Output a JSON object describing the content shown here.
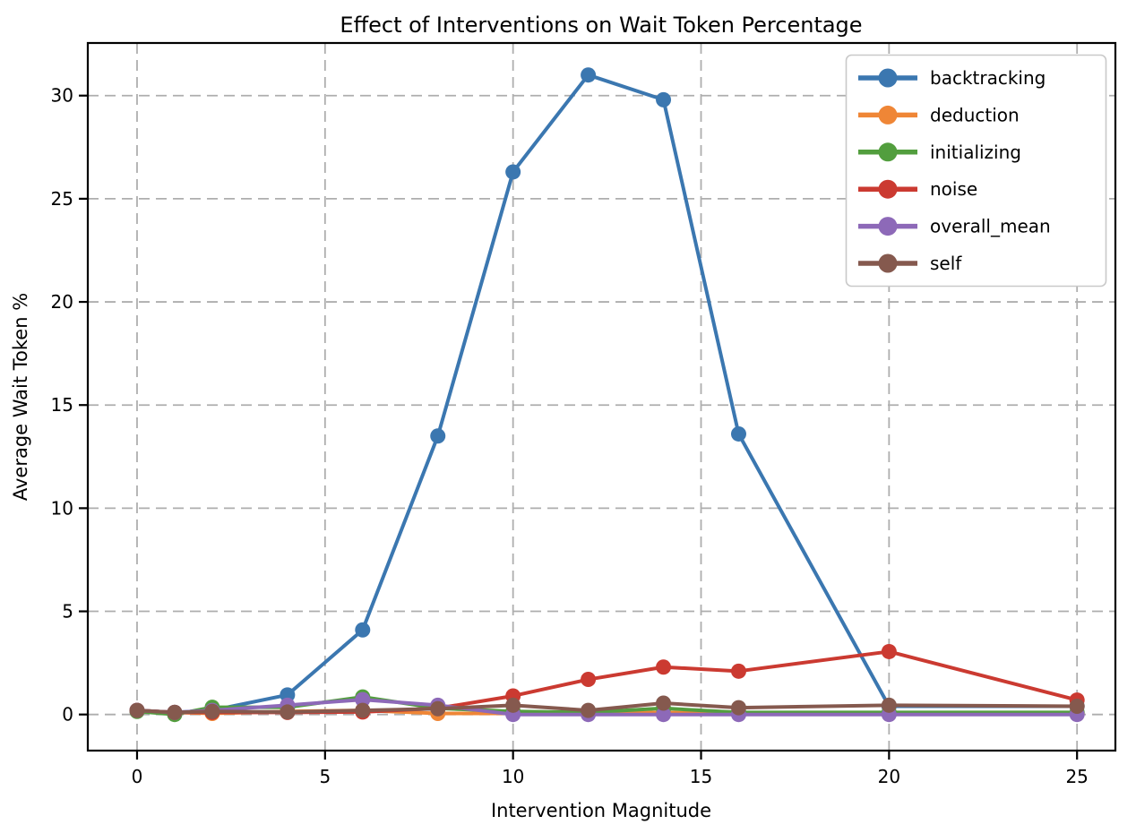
{
  "chart_data": {
    "type": "line",
    "title": "Effect of Interventions on Wait Token Percentage",
    "xlabel": "Intervention Magnitude",
    "ylabel": "Average Wait Token %",
    "x": [
      0,
      1,
      2,
      4,
      6,
      8,
      10,
      12,
      14,
      16,
      20,
      25
    ],
    "series": [
      {
        "name": "backtracking",
        "color": "#3b77b0",
        "values": [
          0.2,
          0.1,
          0.2,
          0.95,
          4.1,
          13.5,
          26.3,
          31.0,
          29.8,
          13.6,
          0.4,
          0.4
        ]
      },
      {
        "name": "deduction",
        "color": "#ef8636",
        "values": [
          0.2,
          0.1,
          0.05,
          0.15,
          0.2,
          0.05,
          0.05,
          0.05,
          0.1,
          0.05,
          0.05,
          0.05
        ]
      },
      {
        "name": "initializing",
        "color": "#529e3e",
        "values": [
          0.15,
          0.0,
          0.35,
          0.35,
          0.85,
          0.3,
          0.15,
          0.1,
          0.3,
          0.1,
          0.1,
          0.1
        ]
      },
      {
        "name": "noise",
        "color": "#cb3a31",
        "values": [
          0.2,
          0.1,
          0.1,
          0.1,
          0.12,
          0.3,
          0.9,
          1.7,
          2.3,
          2.1,
          3.05,
          0.7
        ]
      },
      {
        "name": "overall_mean",
        "color": "#8d69b8",
        "values": [
          0.2,
          0.1,
          0.2,
          0.45,
          0.72,
          0.45,
          0.0,
          0.0,
          0.0,
          0.0,
          0.0,
          0.0
        ]
      },
      {
        "name": "self",
        "color": "#85594e",
        "values": [
          0.2,
          0.1,
          0.15,
          0.12,
          0.2,
          0.28,
          0.45,
          0.2,
          0.55,
          0.33,
          0.45,
          0.4
        ]
      }
    ],
    "xticks": [
      "0",
      "5",
      "10",
      "15",
      "20",
      "25"
    ],
    "xtick_values": [
      0,
      5,
      10,
      15,
      20,
      25
    ],
    "yticks": [
      "0",
      "5",
      "10",
      "15",
      "20",
      "25",
      "30"
    ],
    "ytick_values": [
      0,
      5,
      10,
      15,
      20,
      25,
      30
    ],
    "xlim": [
      -1.31,
      26.02
    ],
    "ylim": [
      -1.75,
      32.55
    ],
    "grid": true,
    "grid_style": "dashed",
    "legend_position": "upper right",
    "legend_labels": [
      "backtracking",
      "deduction",
      "initializing",
      "noise",
      "overall_mean",
      "self"
    ],
    "colors": {
      "grid": "#aeaeae",
      "spine": "#000000",
      "legend_border": "#c9c9c9",
      "legend_background": "#ffffff",
      "text": "#000000"
    }
  }
}
